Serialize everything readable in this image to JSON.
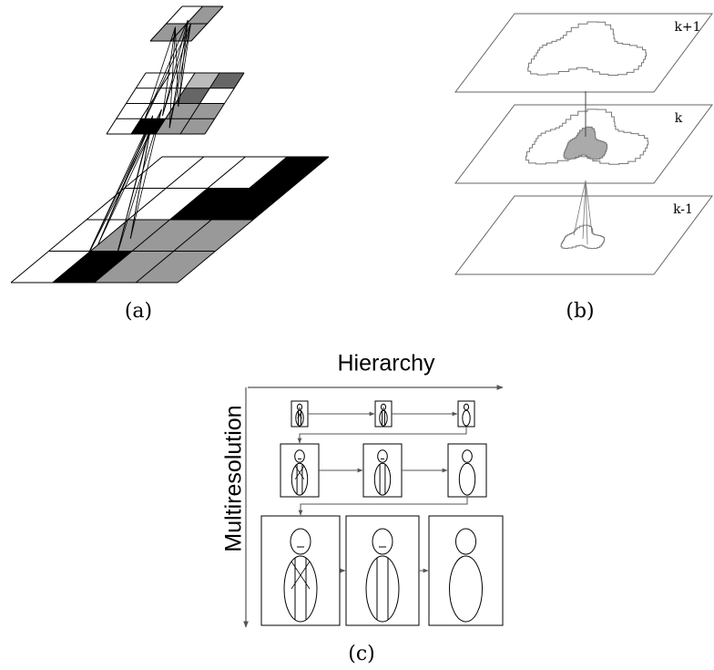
{
  "panels": [
    {
      "label": "(a)"
    },
    {
      "label": "(b)",
      "layers": [
        "k+1",
        "k",
        "k-1"
      ]
    },
    {
      "label": "(c)",
      "x_axis": "Hierarchy",
      "y_axis": "Multiresolution"
    }
  ]
}
